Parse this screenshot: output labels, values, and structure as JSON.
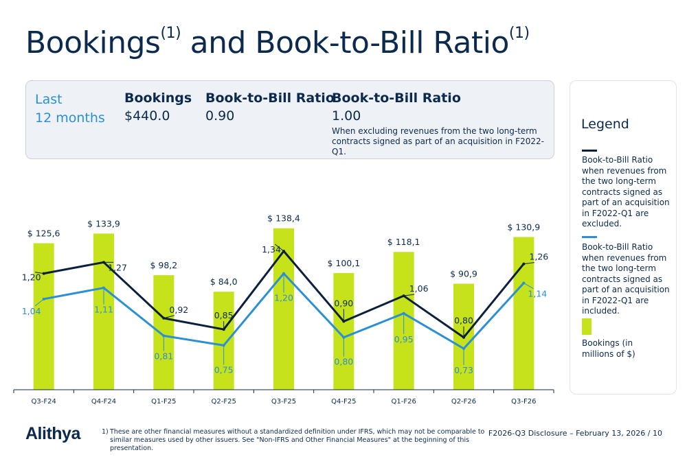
{
  "title": {
    "main": "Bookings",
    "mark1": "(1)",
    "rest": " and Book-to-Bill Ratio",
    "mark2": "(1)"
  },
  "summary": {
    "period_line1": "Last",
    "period_line2": "12 months",
    "bookings_label": "Bookings",
    "bookings_value": "$440.0",
    "btb_label": "Book-to-Bill Ratio",
    "btb_value": "0.90",
    "btb_excl_label": "Book-to-Bill Ratio",
    "btb_excl_value": "1.00",
    "btb_excl_note": "When excluding revenues from the two long-term contracts signed as part of an acquisition in F2022-Q1."
  },
  "legend": {
    "title": "Legend",
    "items": [
      {
        "text": "Book-to-Bill Ratio when revenues from the two long-term contracts signed as part of an acquisition in F2022-Q1 are excluded.",
        "color": "#0b1f3f"
      },
      {
        "text": "Book-to-Bill Ratio when revenues from the two long-term contracts signed as part of an acquisition in F2022-Q1 are included.",
        "color": "#2a8fd6"
      },
      {
        "text": "Bookings (in millions of $)",
        "color": "#c6e21a"
      }
    ]
  },
  "chart_data": {
    "type": "bar",
    "categories": [
      "Q3-F24",
      "Q4-F24",
      "Q1-F25",
      "Q2-F25",
      "Q3-F25",
      "Q4-F25",
      "Q1-F26",
      "Q2-F26",
      "Q3-F26"
    ],
    "series": [
      {
        "values": [
          125.6,
          133.9,
          98.2,
          84.0,
          138.4,
          100.1,
          118.1,
          90.9,
          130.9
        ],
        "labels": [
          "$ 125,6",
          "$ 133,9",
          "$ 98,2",
          "$ 84,0",
          "$ 138,4",
          "$ 100,1",
          "$ 118,1",
          "$ 90,9",
          "$ 130,9"
        ],
        "color": "#c6e21a",
        "kind": "bar"
      },
      {
        "values": [
          1.2,
          1.27,
          0.92,
          0.85,
          1.34,
          0.9,
          1.06,
          0.8,
          1.26
        ],
        "labels": [
          "1,20",
          "1,27",
          "0,92",
          "0,85",
          "1,34",
          "0,90",
          "1,06",
          "0,80",
          "1,26"
        ],
        "color": "#0b1f3f",
        "kind": "line"
      },
      {
        "values": [
          1.04,
          1.11,
          0.81,
          0.75,
          1.2,
          0.8,
          0.95,
          0.73,
          1.14
        ],
        "labels": [
          "1,04",
          "1,11",
          "0,81",
          "0,75",
          "1,20",
          "0,80",
          "0,95",
          "0,73",
          "1,14"
        ],
        "color": "#2a8fd6",
        "kind": "line"
      }
    ],
    "bar_ylim": [
      0,
      145
    ],
    "ratio_ylim": [
      0.4,
      1.45
    ]
  },
  "footer": {
    "logo": "Alithya",
    "footnote_number": "1)",
    "footnote_text": "These are other financial measures without a standardized definition under IFRS, which may not be comparable to similar measures used by other issuers. See \"Non-IFRS and Other Financial Measures\" at the beginning of this presentation.",
    "disclosure": "F2026-Q3 Disclosure – February 13, 2026",
    "page": "/ 10"
  }
}
